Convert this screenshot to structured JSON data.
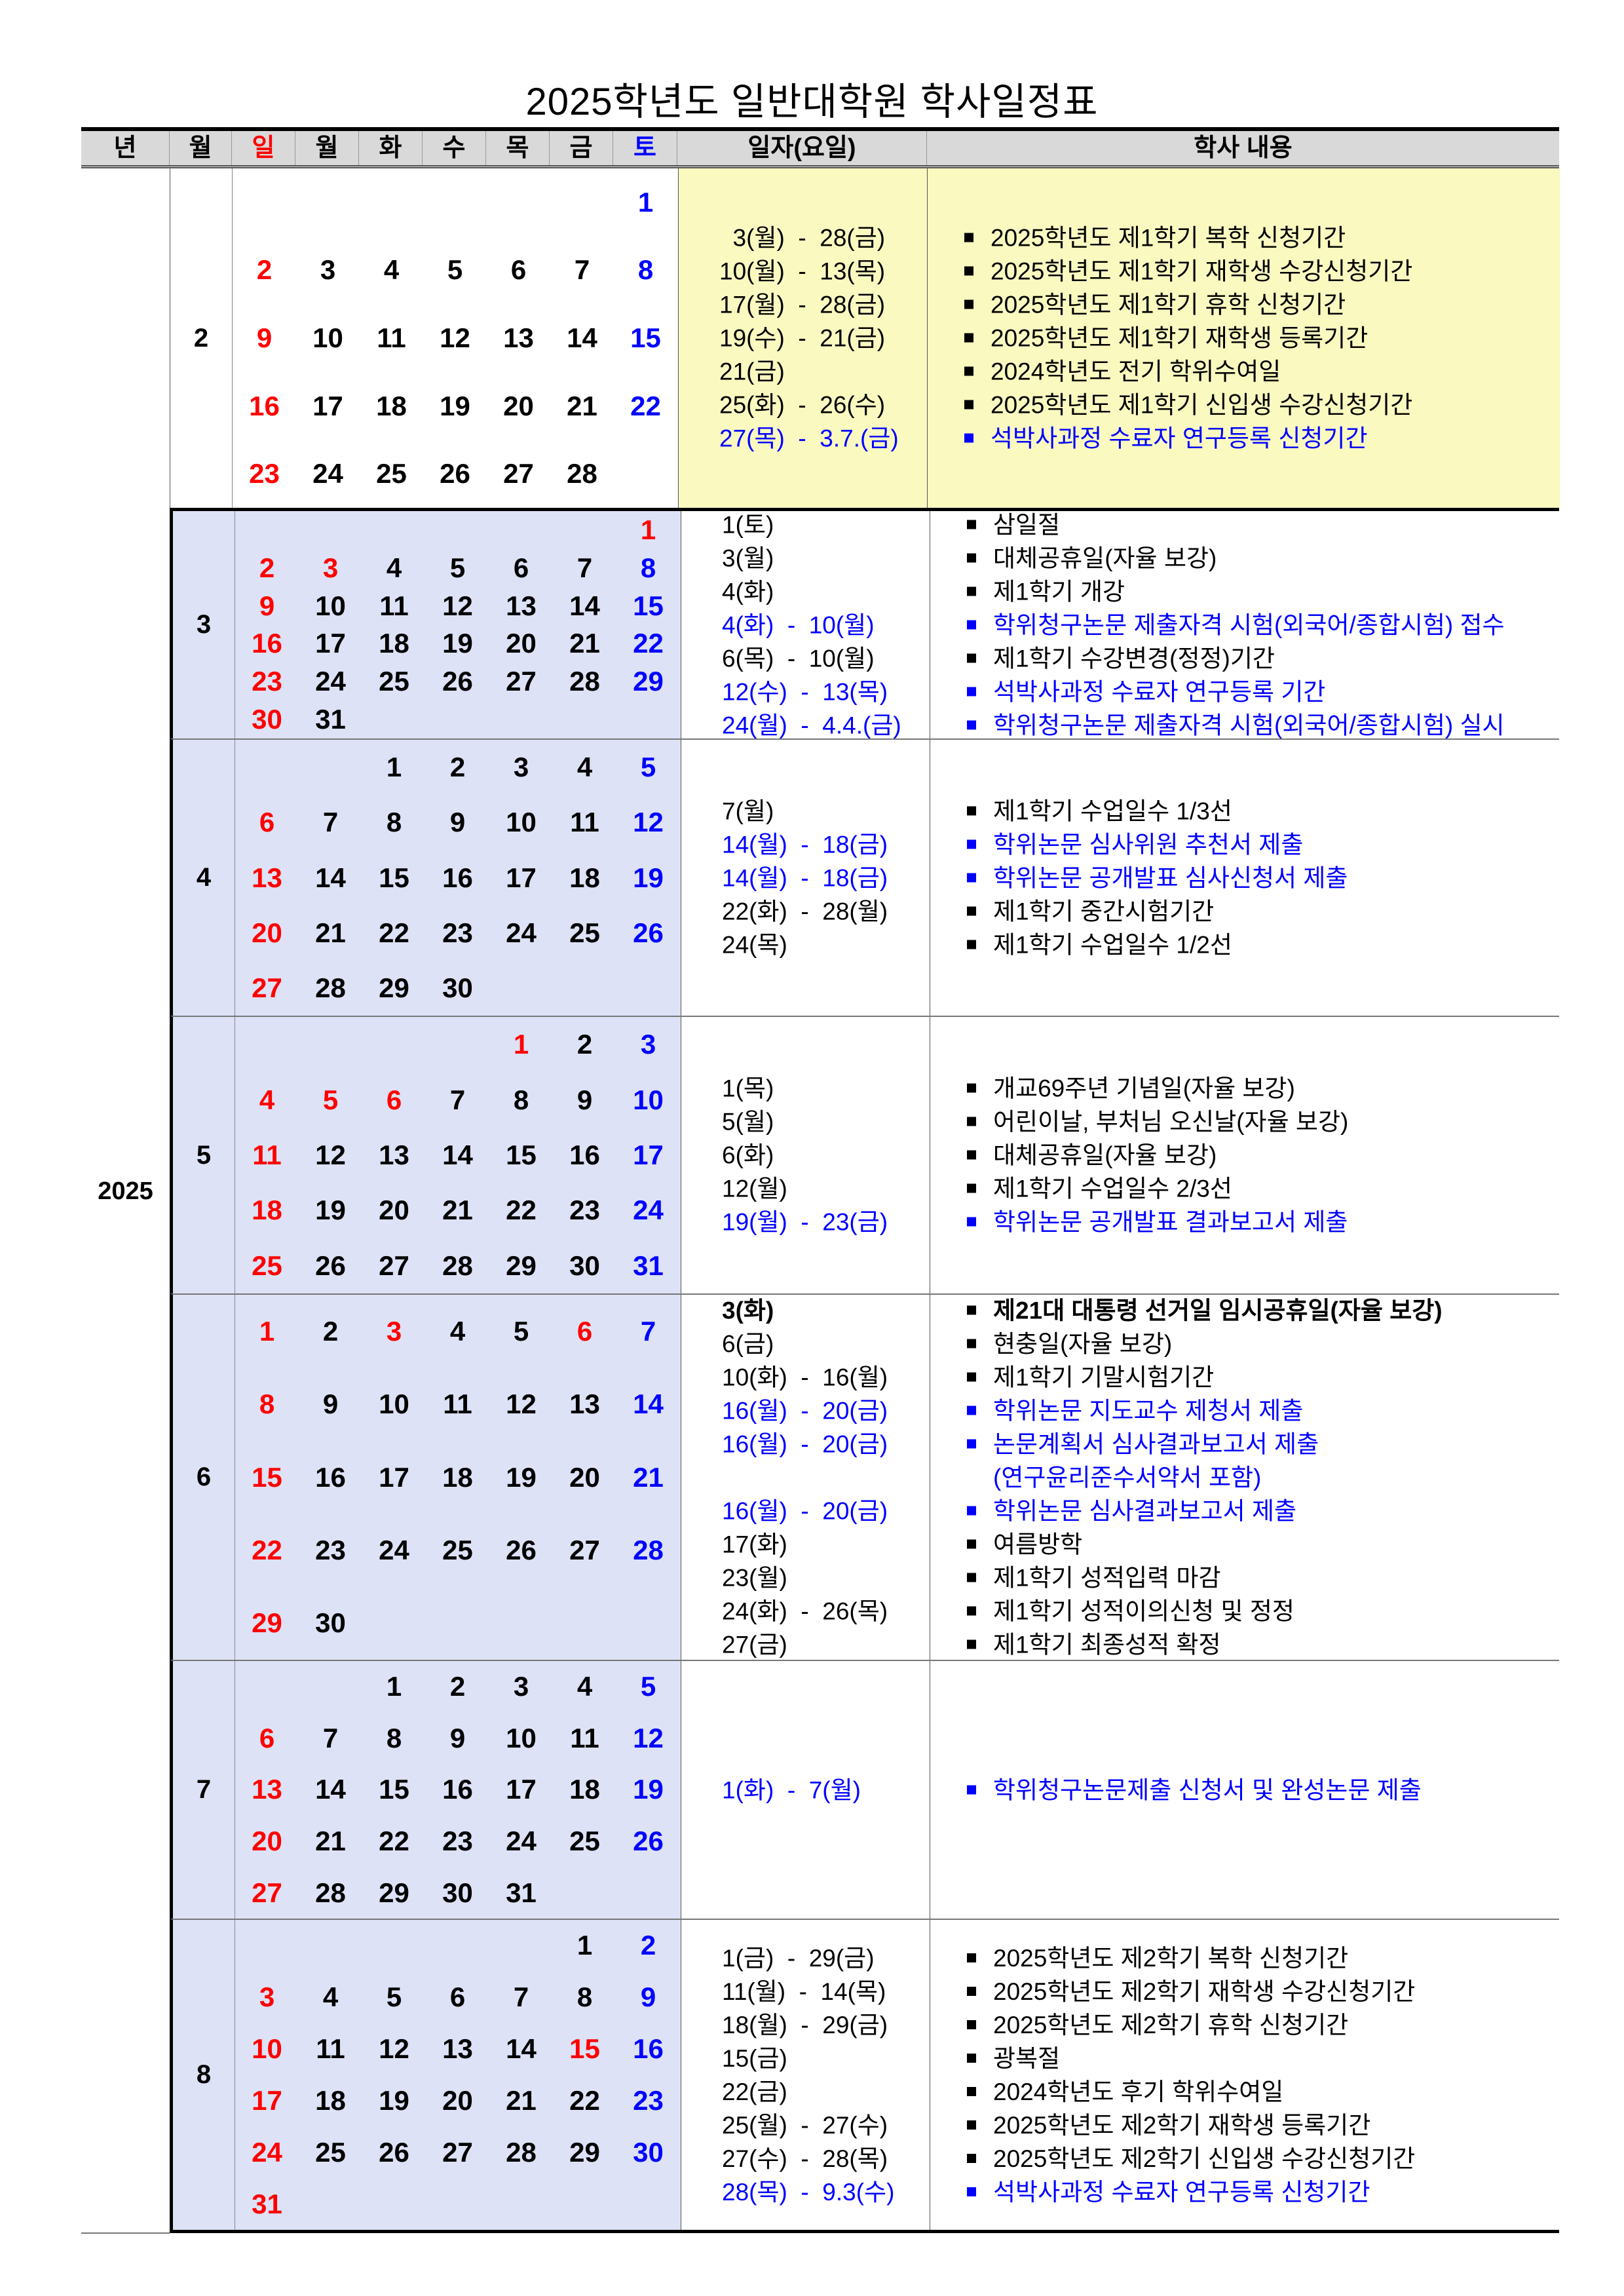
{
  "title": "2025학년도 일반대학원 학사일정표",
  "header": {
    "year": "년",
    "month": "월",
    "weekdays": [
      "일",
      "월",
      "화",
      "수",
      "목",
      "금",
      "토"
    ],
    "date": "일자(요일)",
    "content": "학사 내용"
  },
  "year": "2025",
  "colors": {
    "sunday_holiday": "#ff0000",
    "saturday": "#0000ff",
    "highlight_event": "#0000ff",
    "february_bg": "#f9f9c0",
    "calendar_bg": "#dde2f6",
    "header_bg": "#d9d9d9"
  },
  "months": [
    {
      "month": "2",
      "holidays": [],
      "weeks": [
        [
          0,
          0,
          0,
          0,
          0,
          0,
          1
        ],
        [
          2,
          3,
          4,
          5,
          6,
          7,
          8
        ],
        [
          9,
          10,
          11,
          12,
          13,
          14,
          15
        ],
        [
          16,
          17,
          18,
          19,
          20,
          21,
          22
        ],
        [
          23,
          24,
          25,
          26,
          27,
          28,
          0
        ]
      ],
      "events": [
        {
          "date": "  3(월)  -  28(금)",
          "text": "2025학년도 제1학기 복학 신청기간",
          "blue": false
        },
        {
          "date": "10(월)  -  13(목)",
          "text": "2025학년도 제1학기 재학생 수강신청기간",
          "blue": false
        },
        {
          "date": "17(월)  -  28(금)",
          "text": "2025학년도 제1학기 휴학 신청기간",
          "blue": false
        },
        {
          "date": "19(수)  -  21(금)",
          "text": "2025학년도 제1학기 재학생 등록기간",
          "blue": false
        },
        {
          "date": "21(금)",
          "text": "2024학년도 전기 학위수여일",
          "blue": false
        },
        {
          "date": "25(화)  -  26(수)",
          "text": "2025학년도 제1학기 신입생 수강신청기간",
          "blue": false
        },
        {
          "date": "27(목)  -  3.7.(금)",
          "text": "석박사과정 수료자 연구등록 신청기간",
          "blue": true
        }
      ]
    },
    {
      "month": "3",
      "holidays": [
        1,
        3
      ],
      "weeks": [
        [
          0,
          0,
          0,
          0,
          0,
          0,
          1
        ],
        [
          2,
          3,
          4,
          5,
          6,
          7,
          8
        ],
        [
          9,
          10,
          11,
          12,
          13,
          14,
          15
        ],
        [
          16,
          17,
          18,
          19,
          20,
          21,
          22
        ],
        [
          23,
          24,
          25,
          26,
          27,
          28,
          29
        ],
        [
          30,
          31,
          0,
          0,
          0,
          0,
          0
        ]
      ],
      "events": [
        {
          "date": "1(토)",
          "text": "삼일절",
          "blue": false
        },
        {
          "date": "3(월)",
          "text": "대체공휴일(자율 보강)",
          "blue": false
        },
        {
          "date": "4(화)",
          "text": "제1학기 개강",
          "blue": false
        },
        {
          "date": "4(화)  -  10(월)",
          "text": "학위청구논문 제출자격 시험(외국어/종합시험) 접수",
          "blue": true
        },
        {
          "date": "6(목)  -  10(월)",
          "text": "제1학기 수강변경(정정)기간",
          "blue": false
        },
        {
          "date": "12(수)  -  13(목)",
          "text": "석박사과정 수료자 연구등록 기간",
          "blue": true
        },
        {
          "date": "24(월)  -  4.4.(금)",
          "text": "학위청구논문 제출자격 시험(외국어/종합시험) 실시",
          "blue": true
        }
      ]
    },
    {
      "month": "4",
      "holidays": [],
      "weeks": [
        [
          0,
          0,
          1,
          2,
          3,
          4,
          5
        ],
        [
          6,
          7,
          8,
          9,
          10,
          11,
          12
        ],
        [
          13,
          14,
          15,
          16,
          17,
          18,
          19
        ],
        [
          20,
          21,
          22,
          23,
          24,
          25,
          26
        ],
        [
          27,
          28,
          29,
          30,
          0,
          0,
          0
        ]
      ],
      "events": [
        {
          "date": "7(월)",
          "text": "제1학기 수업일수 1/3선",
          "blue": false
        },
        {
          "date": "14(월)  -  18(금)",
          "text": "학위논문 심사위원 추천서 제출",
          "blue": true
        },
        {
          "date": "14(월)  -  18(금)",
          "text": "학위논문 공개발표 심사신청서 제출",
          "blue": true
        },
        {
          "date": "22(화)  -  28(월)",
          "text": "제1학기 중간시험기간",
          "blue": false
        },
        {
          "date": "24(목)",
          "text": "제1학기 수업일수 1/2선",
          "blue": false
        }
      ]
    },
    {
      "month": "5",
      "holidays": [
        1,
        5,
        6
      ],
      "weeks": [
        [
          0,
          0,
          0,
          0,
          1,
          2,
          3
        ],
        [
          4,
          5,
          6,
          7,
          8,
          9,
          10
        ],
        [
          11,
          12,
          13,
          14,
          15,
          16,
          17
        ],
        [
          18,
          19,
          20,
          21,
          22,
          23,
          24
        ],
        [
          25,
          26,
          27,
          28,
          29,
          30,
          31
        ]
      ],
      "events": [
        {
          "date": "1(목)",
          "text": "개교69주년 기념일(자율 보강)",
          "blue": false
        },
        {
          "date": "5(월)",
          "text": "어린이날, 부처님 오신날(자율 보강)",
          "blue": false
        },
        {
          "date": "6(화)",
          "text": "대체공휴일(자율 보강)",
          "blue": false
        },
        {
          "date": "12(월)",
          "text": "제1학기 수업일수 2/3선",
          "blue": false
        },
        {
          "date": "19(월)  -  23(금)",
          "text": "학위논문 공개발표 결과보고서 제출",
          "blue": true
        }
      ]
    },
    {
      "month": "6",
      "holidays": [
        1,
        3,
        6
      ],
      "weeks": [
        [
          1,
          2,
          3,
          4,
          5,
          6,
          7
        ],
        [
          8,
          9,
          10,
          11,
          12,
          13,
          14
        ],
        [
          15,
          16,
          17,
          18,
          19,
          20,
          21
        ],
        [
          22,
          23,
          24,
          25,
          26,
          27,
          28
        ],
        [
          29,
          30,
          0,
          0,
          0,
          0,
          0
        ]
      ],
      "events": [
        {
          "date": "3(화)",
          "text": "제21대 대통령 선거일 임시공휴일(자율 보강)",
          "blue": false,
          "bold": true
        },
        {
          "date": "6(금)",
          "text": "현충일(자율 보강)",
          "blue": false
        },
        {
          "date": "10(화)  -  16(월)",
          "text": "제1학기 기말시험기간",
          "blue": false
        },
        {
          "date": "16(월)  -  20(금)",
          "text": "학위논문 지도교수 제청서 제출",
          "blue": true
        },
        {
          "date": "16(월)  -  20(금)",
          "text": "논문계획서 심사결과보고서 제출",
          "blue": true
        },
        {
          "date": "",
          "text": "(연구윤리준수서약서 포함)",
          "blue": true,
          "continuation": true
        },
        {
          "date": "16(월)  -  20(금)",
          "text": "학위논문 심사결과보고서 제출",
          "blue": true
        },
        {
          "date": "17(화)",
          "text": "여름방학",
          "blue": false
        },
        {
          "date": "23(월)",
          "text": "제1학기 성적입력 마감",
          "blue": false
        },
        {
          "date": "24(화)  -  26(목)",
          "text": "제1학기 성적이의신청 및 정정",
          "blue": false
        },
        {
          "date": "27(금)",
          "text": "제1학기 최종성적 확정",
          "blue": false
        }
      ]
    },
    {
      "month": "7",
      "holidays": [],
      "weeks": [
        [
          0,
          0,
          1,
          2,
          3,
          4,
          5
        ],
        [
          6,
          7,
          8,
          9,
          10,
          11,
          12
        ],
        [
          13,
          14,
          15,
          16,
          17,
          18,
          19
        ],
        [
          20,
          21,
          22,
          23,
          24,
          25,
          26
        ],
        [
          27,
          28,
          29,
          30,
          31,
          0,
          0
        ]
      ],
      "events": [
        {
          "date": "1(화)  -  7(월)",
          "text": "학위청구논문제출 신청서 및 완성논문 제출",
          "blue": true
        }
      ]
    },
    {
      "month": "8",
      "holidays": [
        15
      ],
      "weeks": [
        [
          0,
          0,
          0,
          0,
          0,
          1,
          2
        ],
        [
          3,
          4,
          5,
          6,
          7,
          8,
          9
        ],
        [
          10,
          11,
          12,
          13,
          14,
          15,
          16
        ],
        [
          17,
          18,
          19,
          20,
          21,
          22,
          23
        ],
        [
          24,
          25,
          26,
          27,
          28,
          29,
          30
        ],
        [
          31,
          0,
          0,
          0,
          0,
          0,
          0
        ]
      ],
      "events": [
        {
          "date": "1(금)  -  29(금)",
          "text": "2025학년도 제2학기 복학 신청기간",
          "blue": false
        },
        {
          "date": "11(월)  -  14(목)",
          "text": "2025학년도 제2학기 재학생 수강신청기간",
          "blue": false
        },
        {
          "date": "18(월)  -  29(금)",
          "text": "2025학년도 제2학기 휴학 신청기간",
          "blue": false
        },
        {
          "date": "15(금)",
          "text": "광복절",
          "blue": false
        },
        {
          "date": "22(금)",
          "text": "2024학년도 후기 학위수여일",
          "blue": false
        },
        {
          "date": "25(월)  -  27(수)",
          "text": "2025학년도 제2학기 재학생 등록기간",
          "blue": false
        },
        {
          "date": "27(수)  -  28(목)",
          "text": "2025학년도 제2학기 신입생 수강신청기간",
          "blue": false
        },
        {
          "date": "28(목)  -  9.3(수)",
          "text": "석박사과정 수료자 연구등록 신청기간",
          "blue": true
        }
      ]
    }
  ]
}
